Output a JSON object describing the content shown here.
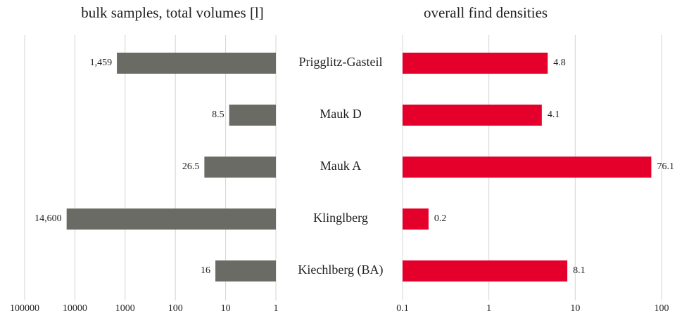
{
  "chart_data": [
    {
      "type": "bar",
      "orientation": "horizontal",
      "title": "bulk samples, total volumes [l]",
      "categories": [
        "Prigglitz-Gasteil",
        "Mauk D",
        "Mauk A",
        "Klinglberg",
        "Kiechlberg (BA)"
      ],
      "values": [
        1459,
        8.5,
        26.5,
        14600,
        16
      ],
      "value_labels": [
        "1,459",
        "8.5",
        "26.5",
        "14,600",
        "16"
      ],
      "color": "#6b6b66",
      "log_scale": true,
      "xlim": [
        100000,
        1
      ],
      "xticks": [
        100000,
        10000,
        1000,
        100,
        10,
        1
      ],
      "grid": true
    },
    {
      "type": "bar",
      "orientation": "horizontal",
      "title": "overall find densities",
      "values": [
        4.8,
        4.1,
        76.1,
        0.2,
        8.1
      ],
      "color": "#e4002b",
      "log_scale": true,
      "xlim": [
        0.1,
        100
      ],
      "xticks": [
        0.1,
        1,
        10,
        100
      ],
      "grid": true
    }
  ]
}
